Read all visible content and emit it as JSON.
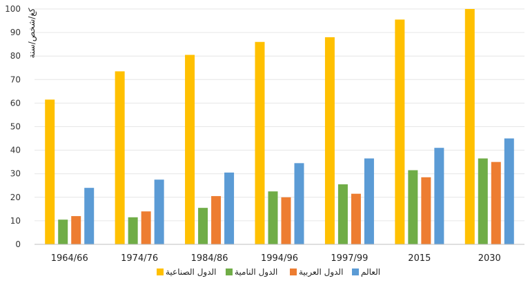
{
  "chart_data": {
    "type": "bar",
    "categories": [
      "1964/66",
      "1974/76",
      "1984/86",
      "1994/96",
      "1997/99",
      "2015",
      "2030"
    ],
    "series": [
      {
        "name": "الدول الصناعية",
        "color": "#FFC000",
        "values": [
          61.5,
          73.5,
          80.5,
          86,
          88,
          95.5,
          100
        ]
      },
      {
        "name": "الدول النامية",
        "color": "#70AD47",
        "values": [
          10.5,
          11.5,
          15.5,
          22.5,
          25.5,
          31.5,
          36.5
        ]
      },
      {
        "name": "الدول العربية",
        "color": "#ED7D31",
        "values": [
          12,
          14,
          20.5,
          20,
          21.5,
          28.5,
          35
        ]
      },
      {
        "name": "العالم",
        "color": "#5B9BD5",
        "values": [
          24,
          27.5,
          30.5,
          34.5,
          36.5,
          41,
          45
        ]
      }
    ],
    "ylabel": "كغ/شخص/سنة",
    "ylim": [
      0,
      100
    ],
    "yticks": [
      0,
      10,
      20,
      30,
      40,
      50,
      60,
      70,
      80,
      90,
      100
    ],
    "grid": true,
    "legend_position": "bottom"
  }
}
